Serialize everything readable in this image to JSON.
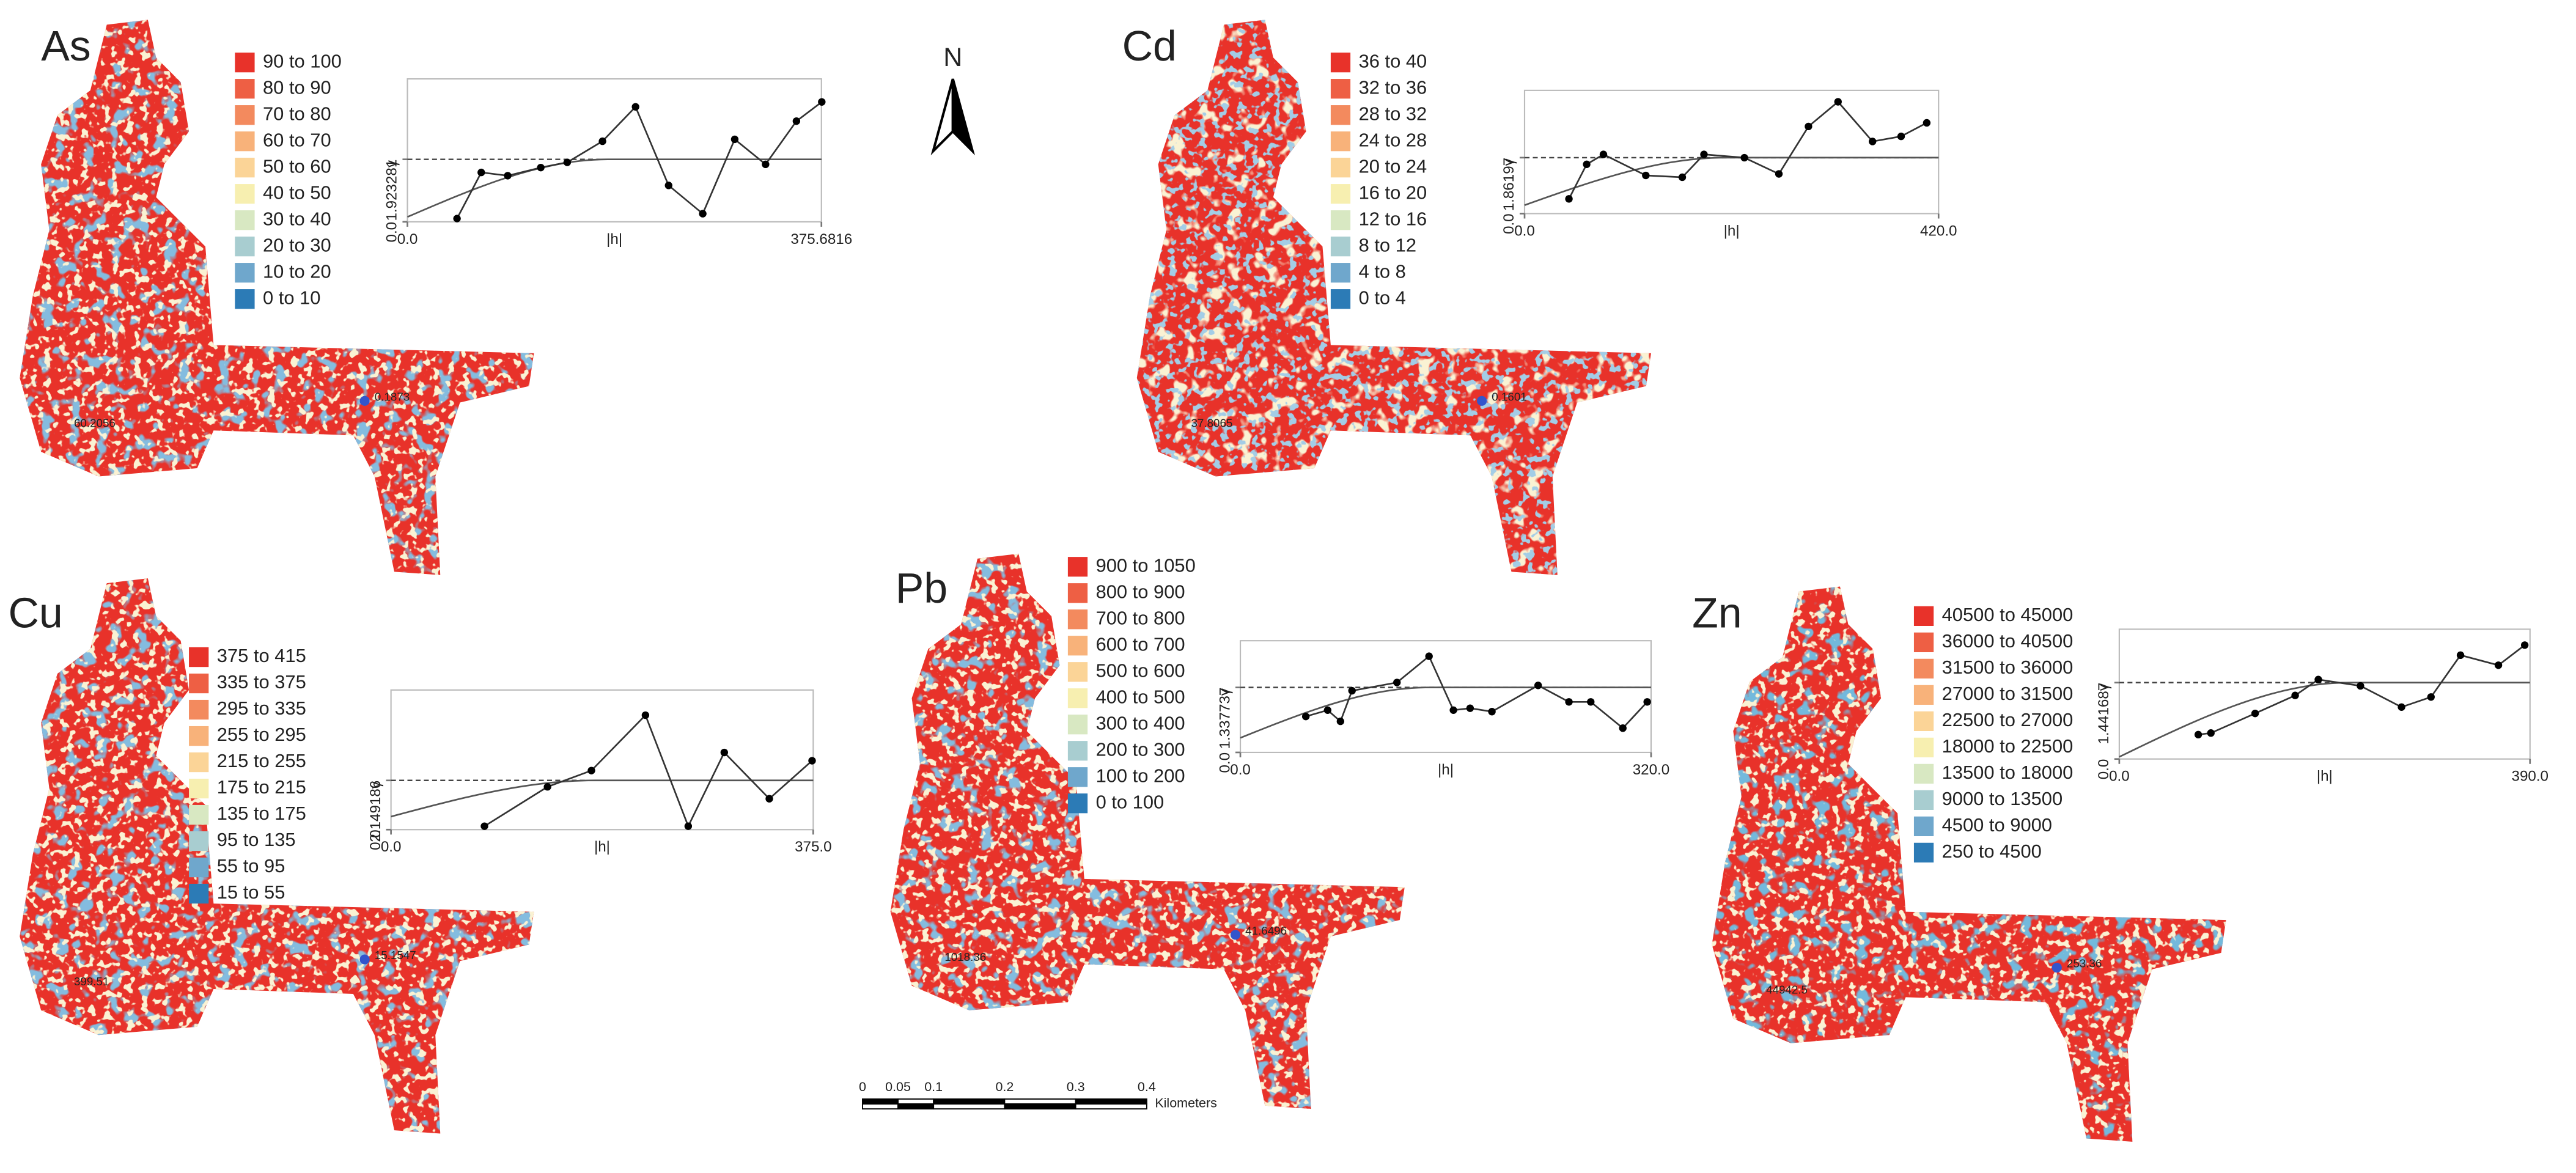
{
  "north": "N",
  "scale_bar": {
    "ticks": [
      0,
      0.05,
      0.1,
      0.2,
      0.3,
      0.4
    ],
    "unit": "Kilometers"
  },
  "panels": [
    {
      "element": "As",
      "map_colors": [
        "#e8322a",
        "#3b80bd",
        "#f3e2a6"
      ],
      "map_labels": [
        "60.2056",
        "0.1873"
      ],
      "legend": [
        {
          "label": "90 to 100",
          "color": "#e8322a"
        },
        {
          "label": "80 to 90",
          "color": "#ee5f44"
        },
        {
          "label": "70 to 80",
          "color": "#f38a5e"
        },
        {
          "label": "60 to 70",
          "color": "#f8b27a"
        },
        {
          "label": "50 to 60",
          "color": "#fbd497"
        },
        {
          "label": "40 to 50",
          "color": "#f7efb0"
        },
        {
          "label": "30 to 40",
          "color": "#d8e8c2"
        },
        {
          "label": "20 to 30",
          "color": "#a8cdd0"
        },
        {
          "label": "10 to 20",
          "color": "#6fa7cc"
        },
        {
          "label": "0 to 10",
          "color": "#2c7bb6"
        }
      ],
      "variogram": {
        "xlabel": "|h|",
        "ylabel": "γ",
        "xlim": [
          0,
          375.6816
        ],
        "xticks": [
          {
            "value": 0,
            "label": "0.0"
          },
          375.6816
        ],
        "ylim": [
          0,
          4.4
        ],
        "yticks": [
          {
            "value": 0,
            "label": "0.0"
          },
          1.923281
        ],
        "x": [
          45,
          67,
          91,
          121,
          145,
          177,
          207,
          237,
          268,
          297,
          325,
          353,
          376
        ],
        "y": [
          0.1,
          1.52,
          1.42,
          1.67,
          1.83,
          2.48,
          3.54,
          1.12,
          0.25,
          2.54,
          1.77,
          3.1,
          3.69
        ],
        "model": {
          "nugget": 0.15,
          "sill": 1.923281,
          "range": 182
        }
      }
    },
    {
      "element": "Cd",
      "map_colors": [
        "#e8322a",
        "#f3e2a6",
        "#5e9bc9"
      ],
      "map_labels": [
        "37.8065",
        "0.1601"
      ],
      "legend": [
        {
          "label": "36 to 40",
          "color": "#e8322a"
        },
        {
          "label": "32 to 36",
          "color": "#ee5f44"
        },
        {
          "label": "28 to 32",
          "color": "#f38a5e"
        },
        {
          "label": "24 to 28",
          "color": "#f8b27a"
        },
        {
          "label": "20 to 24",
          "color": "#fbd497"
        },
        {
          "label": "16 to 20",
          "color": "#f7efb0"
        },
        {
          "label": "12 to 16",
          "color": "#d8e8c2"
        },
        {
          "label": "8 to 12",
          "color": "#a8cdd0"
        },
        {
          "label": "4 to 8",
          "color": "#6fa7cc"
        },
        {
          "label": "0 to 4",
          "color": "#2c7bb6"
        }
      ],
      "variogram": {
        "xlabel": "|h|",
        "ylabel": "γ",
        "xlim": [
          0,
          420
        ],
        "xticks": [
          {
            "value": 0,
            "label": "0.0"
          },
          {
            "value": 420,
            "label": "420.0"
          }
        ],
        "ylim": [
          0,
          4.1
        ],
        "yticks": [
          {
            "value": 0,
            "label": "0.0"
          },
          1.86197
        ],
        "x": [
          45,
          63,
          80,
          123,
          160,
          182,
          223,
          258,
          288,
          318,
          353,
          382,
          408
        ],
        "y": [
          0.49,
          1.64,
          1.97,
          1.27,
          1.21,
          1.97,
          1.86,
          1.32,
          2.9,
          3.72,
          2.4,
          2.57,
          3.02
        ],
        "model": {
          "nugget": 0.28,
          "sill": 1.86197,
          "range": 203
        }
      }
    },
    {
      "element": "Cu",
      "map_colors": [
        "#e8322a",
        "#3b80bd",
        "#f3e2a6"
      ],
      "map_labels": [
        "399.51",
        "15.1547"
      ],
      "legend": [
        {
          "label": "375 to 415",
          "color": "#e8322a"
        },
        {
          "label": "335 to 375",
          "color": "#ee5f44"
        },
        {
          "label": "295 to 335",
          "color": "#f38a5e"
        },
        {
          "label": "255 to 295",
          "color": "#f8b27a"
        },
        {
          "label": "215 to 255",
          "color": "#fbd497"
        },
        {
          "label": "175 to 215",
          "color": "#f7efb0"
        },
        {
          "label": "135 to 175",
          "color": "#d8e8c2"
        },
        {
          "label": "95 to 135",
          "color": "#a8cdd0"
        },
        {
          "label": "55 to 95",
          "color": "#6fa7cc"
        },
        {
          "label": "15 to 55",
          "color": "#2c7bb6"
        }
      ],
      "variogram": {
        "xlabel": "|h|",
        "ylabel": "γ",
        "xlim": [
          0,
          375
        ],
        "xticks": [
          {
            "value": 0,
            "label": "0.0"
          },
          {
            "value": 375,
            "label": "375.0"
          }
        ],
        "ylim": [
          0,
          6.1
        ],
        "yticks": [
          {
            "value": 0,
            "label": "0.0"
          },
          2.149186
        ],
        "x": [
          83,
          139,
          178,
          226,
          264,
          296,
          336,
          374
        ],
        "y": [
          0.15,
          1.87,
          2.58,
          5.0,
          0.15,
          3.37,
          1.35,
          3.01
        ],
        "model": {
          "nugget": 0.57,
          "sill": 2.149186,
          "range": 180
        }
      }
    },
    {
      "element": "Pb",
      "map_colors": [
        "#e8322a",
        "#3b80bd",
        "#f3e2a6"
      ],
      "map_labels": [
        "1018.36",
        "41.6496"
      ],
      "legend": [
        {
          "label": "900 to 1050",
          "color": "#e8322a"
        },
        {
          "label": "800 to 900",
          "color": "#ee5f44"
        },
        {
          "label": "700 to 800",
          "color": "#f38a5e"
        },
        {
          "label": "600 to 700",
          "color": "#f8b27a"
        },
        {
          "label": "500 to 600",
          "color": "#fbd497"
        },
        {
          "label": "400 to 500",
          "color": "#f7efb0"
        },
        {
          "label": "300 to 400",
          "color": "#d8e8c2"
        },
        {
          "label": "200 to 300",
          "color": "#a8cdd0"
        },
        {
          "label": "100 to 200",
          "color": "#6fa7cc"
        },
        {
          "label": "0 to 100",
          "color": "#2c7bb6"
        }
      ],
      "variogram": {
        "xlabel": "|h|",
        "ylabel": "γ",
        "xlim": [
          0,
          320
        ],
        "xticks": [
          {
            "value": 0,
            "label": "0.0"
          },
          {
            "value": 320,
            "label": "320.0"
          }
        ],
        "ylim": [
          0,
          2.3
        ],
        "yticks": [
          {
            "value": 0,
            "label": "0.0"
          },
          1.337737
        ],
        "x": [
          51,
          68,
          78,
          87,
          122,
          147,
          166,
          179,
          196,
          232,
          256,
          273,
          298,
          317
        ],
        "y": [
          0.74,
          0.87,
          0.64,
          1.27,
          1.44,
          1.98,
          0.87,
          0.91,
          0.84,
          1.38,
          1.04,
          1.04,
          0.5,
          1.04
        ],
        "model": {
          "nugget": 0.3,
          "sill": 1.337737,
          "range": 147
        }
      }
    },
    {
      "element": "Zn",
      "map_colors": [
        "#e8322a",
        "#2c7bb6",
        "#f3e2a6"
      ],
      "map_labels": [
        "44942.5",
        "253.36"
      ],
      "legend": [
        {
          "label": "40500 to 45000",
          "color": "#e8322a"
        },
        {
          "label": "36000 to 40500",
          "color": "#ee5f44"
        },
        {
          "label": "31500 to 36000",
          "color": "#f38a5e"
        },
        {
          "label": "27000 to 31500",
          "color": "#f8b27a"
        },
        {
          "label": "22500 to 27000",
          "color": "#fbd497"
        },
        {
          "label": "18000 to 22500",
          "color": "#f7efb0"
        },
        {
          "label": "13500 to 18000",
          "color": "#d8e8c2"
        },
        {
          "label": "9000 to 13500",
          "color": "#a8cdd0"
        },
        {
          "label": "4500 to 9000",
          "color": "#6fa7cc"
        },
        {
          "label": "250 to 4500",
          "color": "#2c7bb6"
        }
      ],
      "variogram": {
        "xlabel": "|h|",
        "ylabel": "γ",
        "xlim": [
          0,
          390
        ],
        "xticks": [
          {
            "value": 0,
            "label": "0.0"
          },
          {
            "value": 390,
            "label": "390.0"
          }
        ],
        "ylim": [
          0,
          2.45
        ],
        "yticks": [
          {
            "value": 0,
            "label": "0.0"
          },
          1.441687
        ],
        "x": [
          75,
          87,
          129,
          167,
          189,
          229,
          268,
          296,
          324,
          360,
          385
        ],
        "y": [
          0.46,
          0.49,
          0.86,
          1.2,
          1.5,
          1.38,
          0.98,
          1.17,
          1.96,
          1.77,
          2.15
        ],
        "model": {
          "nugget": 0.04,
          "sill": 1.441687,
          "range": 218
        }
      }
    }
  ]
}
